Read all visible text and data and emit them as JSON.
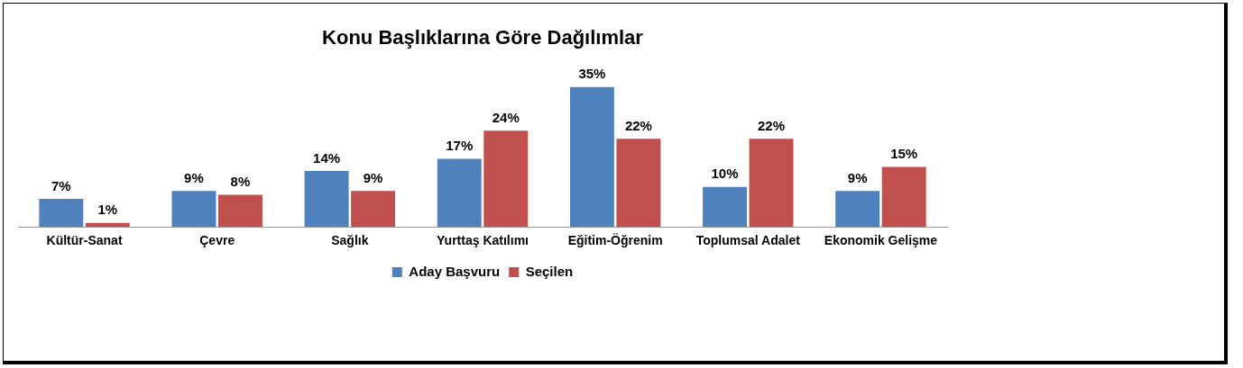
{
  "chart_data": {
    "type": "bar",
    "title": "Konu Başlıklarına Göre Dağılımlar",
    "categories": [
      "Kültür-Sanat",
      "Çevre",
      "Sağlık",
      "Yurttaş Katılımı",
      "Eğitim-Öğrenim",
      "Toplumsal Adalet",
      "Ekonomik Gelişme"
    ],
    "series": [
      {
        "name": "Aday Başvuru",
        "color": "#4f81bd",
        "values": [
          7,
          9,
          14,
          17,
          35,
          10,
          9
        ],
        "value_labels": [
          "7%",
          "9%",
          "14%",
          "17%",
          "35%",
          "10%",
          "9%"
        ]
      },
      {
        "name": "Seçilen",
        "color": "#c0504d",
        "values": [
          1,
          8,
          9,
          24,
          22,
          22,
          15
        ],
        "value_labels": [
          "1%",
          "8%",
          "9%",
          "24%",
          "22%",
          "22%",
          "15%"
        ]
      }
    ],
    "legend": "bottom",
    "grid": false
  }
}
